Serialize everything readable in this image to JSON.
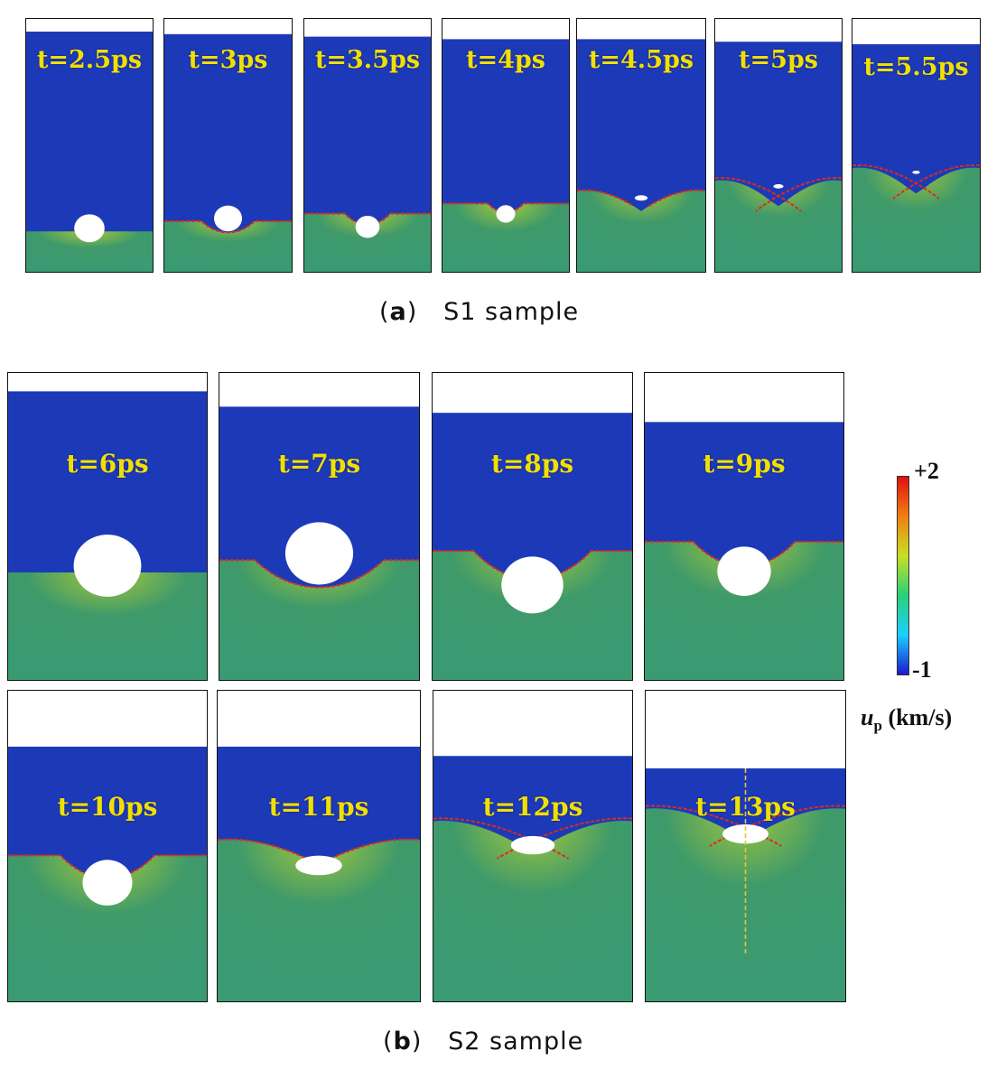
{
  "colors": {
    "compressed": "#3f9a6a",
    "unshocked": "#1c3ab8",
    "front": "#e02a1a",
    "label": "#f0e000"
  },
  "panel_a": {
    "caption_letter": "a",
    "caption_text": "S1 sample",
    "frames": [
      {
        "time": "t=2.5ps",
        "top_fill": 0.05,
        "interface": 0.84,
        "void_size": 0.24,
        "void_shape": "round",
        "front": "none"
      },
      {
        "time": "t=3ps",
        "top_fill": 0.06,
        "interface": 0.8,
        "void_size": 0.22,
        "void_shape": "round",
        "front": "cup"
      },
      {
        "time": "t=3.5ps",
        "top_fill": 0.07,
        "interface": 0.77,
        "void_size": 0.19,
        "void_shape": "round",
        "front": "notch"
      },
      {
        "time": "t=4ps",
        "top_fill": 0.08,
        "interface": 0.73,
        "void_size": 0.15,
        "void_shape": "round",
        "front": "notch"
      },
      {
        "time": "t=4.5ps",
        "top_fill": 0.08,
        "interface": 0.68,
        "void_size": 0.1,
        "void_shape": "flat",
        "front": "v"
      },
      {
        "time": "t=5ps",
        "top_fill": 0.09,
        "interface": 0.64,
        "void_size": 0.08,
        "void_shape": "flat",
        "front": "x"
      },
      {
        "time": "t=5.5ps",
        "top_fill": 0.1,
        "interface": 0.59,
        "void_size": 0.06,
        "void_shape": "flat",
        "front": "x"
      }
    ]
  },
  "panel_b": {
    "caption_letter": "b",
    "caption_text": "S2 sample",
    "rows": [
      [
        {
          "time": "t=6ps",
          "top_fill": 0.06,
          "interface": 0.65,
          "void_size": 0.34,
          "void_shape": "round",
          "front": "none"
        },
        {
          "time": "t=7ps",
          "top_fill": 0.11,
          "interface": 0.61,
          "void_size": 0.34,
          "void_shape": "round",
          "front": "cup"
        },
        {
          "time": "t=8ps",
          "top_fill": 0.13,
          "interface": 0.58,
          "void_size": 0.31,
          "void_shape": "round",
          "front": "notch"
        },
        {
          "time": "t=9ps",
          "top_fill": 0.16,
          "interface": 0.55,
          "void_size": 0.27,
          "void_shape": "round",
          "front": "notch"
        }
      ],
      [
        {
          "time": "t=10ps",
          "top_fill": 0.18,
          "interface": 0.53,
          "void_size": 0.25,
          "void_shape": "round",
          "front": "notch"
        },
        {
          "time": "t=11ps",
          "top_fill": 0.18,
          "interface": 0.48,
          "void_size": 0.23,
          "void_shape": "flat",
          "front": "v"
        },
        {
          "time": "t=12ps",
          "top_fill": 0.21,
          "interface": 0.42,
          "void_size": 0.22,
          "void_shape": "flat",
          "front": "x"
        },
        {
          "time": "t=13ps",
          "top_fill": 0.25,
          "interface": 0.38,
          "void_size": 0.23,
          "void_shape": "flat",
          "front": "x",
          "axis_line": true
        }
      ]
    ]
  },
  "colorbar": {
    "max_label": "+2",
    "min_label": "-1",
    "symbol": "u",
    "subscript": "p",
    "unit": "(km/s)",
    "stops": [
      "#1a1ad0",
      "#1ad0ff",
      "#2ad07a",
      "#c8e020",
      "#f08010",
      "#e01010"
    ]
  }
}
